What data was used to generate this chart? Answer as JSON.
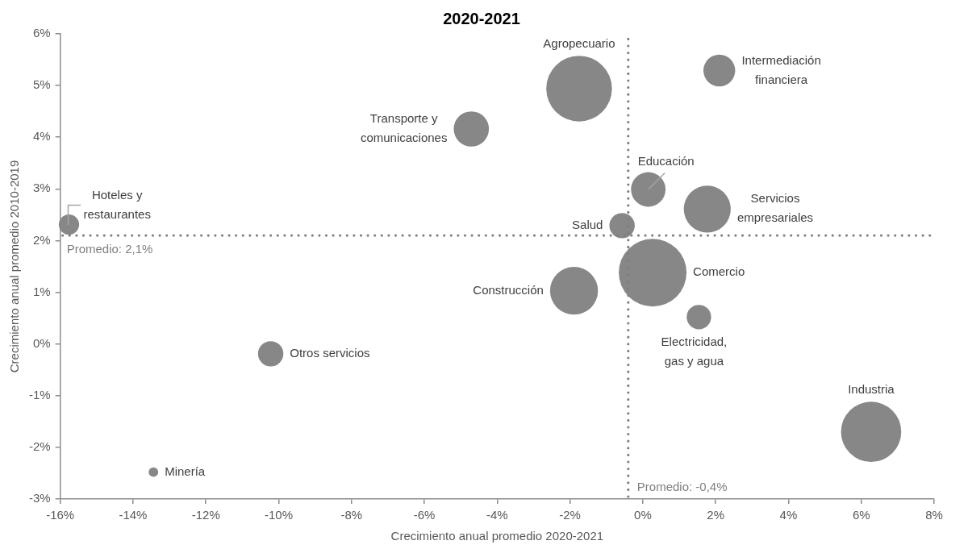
{
  "chart_data": {
    "type": "bubble",
    "title": "2020-2021",
    "xlabel": "Crecimiento anual promedio 2020-2021",
    "ylabel": "Crecimiento anual promedio 2010-2019",
    "xlim": [
      -16,
      8
    ],
    "ylim": [
      -3,
      6
    ],
    "xticks": [
      {
        "value": -16,
        "label": "-16%"
      },
      {
        "value": -14,
        "label": "-14%"
      },
      {
        "value": -12,
        "label": "-12%"
      },
      {
        "value": -10,
        "label": "-10%"
      },
      {
        "value": -8,
        "label": "-8%"
      },
      {
        "value": -6,
        "label": "-6%"
      },
      {
        "value": -4,
        "label": "-4%"
      },
      {
        "value": -2,
        "label": "-2%"
      },
      {
        "value": 0,
        "label": "0%"
      },
      {
        "value": 2,
        "label": "2%"
      },
      {
        "value": 4,
        "label": "4%"
      },
      {
        "value": 6,
        "label": "6%"
      },
      {
        "value": 8,
        "label": "8%"
      }
    ],
    "yticks": [
      {
        "value": -3,
        "label": "-3%"
      },
      {
        "value": -2,
        "label": "-2%"
      },
      {
        "value": -1,
        "label": "-1%"
      },
      {
        "value": 0,
        "label": "0%"
      },
      {
        "value": 1,
        "label": "1%"
      },
      {
        "value": 2,
        "label": "2%"
      },
      {
        "value": 3,
        "label": "3%"
      },
      {
        "value": 4,
        "label": "4%"
      },
      {
        "value": 5,
        "label": "5%"
      },
      {
        "value": 6,
        "label": "6%"
      }
    ],
    "ref_lines": [
      {
        "axis": "y",
        "value": 2.1,
        "label": "Promedio: 2,1%",
        "color": "#7f7f7f",
        "line_style": "dotted"
      },
      {
        "axis": "x",
        "value": -0.4,
        "label": "Promedio: -0,4%",
        "color": "#7f7f7f",
        "line_style": "dotted"
      }
    ],
    "series": [
      {
        "name": "Agropecuario",
        "color": "#878787",
        "x": [
          -1.75
        ],
        "values": [
          4.94
        ],
        "sizes": [
          0.94
        ]
      },
      {
        "name": "Intermediación financiera",
        "color": "#878787",
        "x": [
          2.1
        ],
        "values": [
          5.29
        ],
        "sizes": [
          0.22
        ]
      },
      {
        "name": "Transporte y comunicaciones",
        "color": "#878787",
        "x": [
          -4.71
        ],
        "values": [
          4.16
        ],
        "sizes": [
          0.27
        ]
      },
      {
        "name": "Educación",
        "color": "#878787",
        "x": [
          0.15
        ],
        "values": [
          2.99
        ],
        "sizes": [
          0.26
        ]
      },
      {
        "name": "Servicios empresariales",
        "color": "#878787",
        "x": [
          1.77
        ],
        "values": [
          2.61
        ],
        "sizes": [
          0.48
        ]
      },
      {
        "name": "Salud",
        "color": "#878787",
        "x": [
          -0.57
        ],
        "values": [
          2.29
        ],
        "sizes": [
          0.14
        ]
      },
      {
        "name": "Comercio",
        "color": "#878787",
        "x": [
          0.27
        ],
        "values": [
          1.38
        ],
        "sizes": [
          1
        ]
      },
      {
        "name": "Construcción",
        "color": "#878787",
        "x": [
          -1.89
        ],
        "values": [
          1.03
        ],
        "sizes": [
          0.5
        ]
      },
      {
        "name": "Electricidad, gas y agua",
        "color": "#878787",
        "x": [
          1.54
        ],
        "values": [
          0.52
        ],
        "sizes": [
          0.13
        ]
      },
      {
        "name": "Industria",
        "color": "#878787",
        "x": [
          6.27
        ],
        "values": [
          -1.7
        ],
        "sizes": [
          0.79
        ]
      },
      {
        "name": "Hoteles y restaurantes",
        "color": "#878787",
        "x": [
          -15.76
        ],
        "values": [
          2.31
        ],
        "sizes": [
          0.09
        ]
      },
      {
        "name": "Otros servicios",
        "color": "#878787",
        "x": [
          -10.22
        ],
        "values": [
          -0.19
        ],
        "sizes": [
          0.14
        ]
      },
      {
        "name": "Minería",
        "color": "#878787",
        "x": [
          -13.44
        ],
        "values": [
          -2.48
        ],
        "sizes": [
          0.02
        ]
      }
    ]
  }
}
